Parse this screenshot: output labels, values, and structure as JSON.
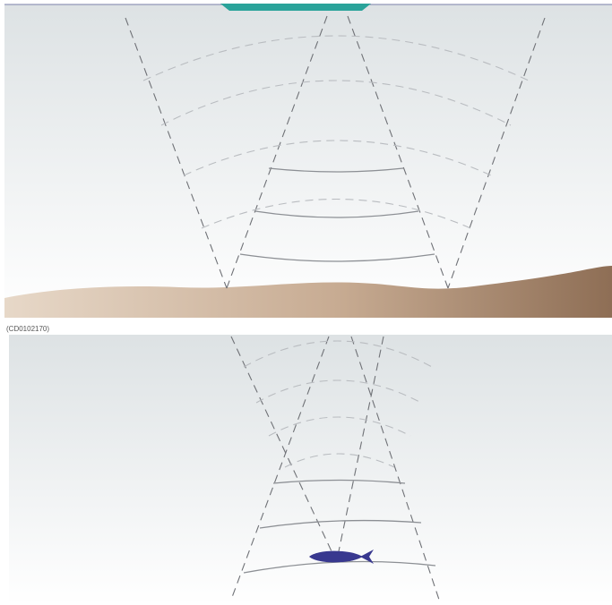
{
  "figure_code": "(CD0102170)",
  "colors": {
    "water_top": "#dde2e4",
    "water_bottom": "#ffffff",
    "seabed_light": "#e7d8c8",
    "seabed_dark": "#8e6e55",
    "boat_hull": "#2aa39a",
    "beam_line": "#6f7176",
    "wave_faint": "#b9bcc0",
    "wave_echo": "#8c8f94",
    "fish": "#38388f"
  },
  "icons": {
    "boat": "boat-hull-icon",
    "fish": "fish-icon"
  }
}
